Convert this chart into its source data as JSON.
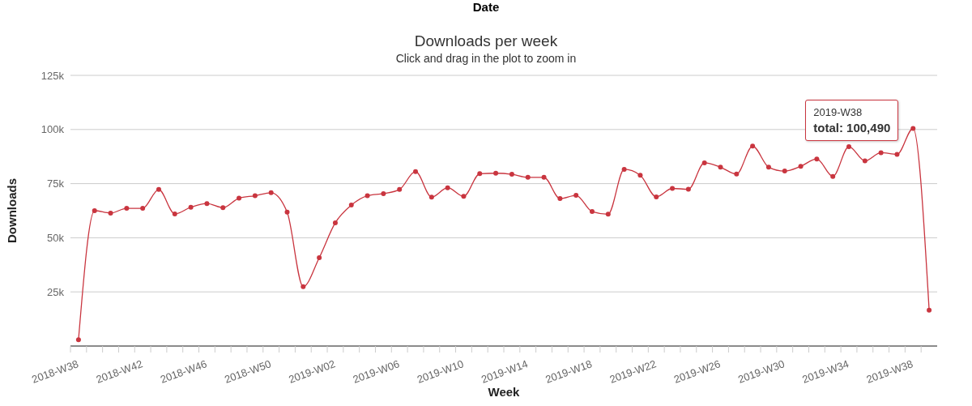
{
  "chart_data": {
    "type": "line",
    "title": "Downloads per week",
    "subtitle": "Click and drag in the plot to zoom in",
    "xlabel": "Week",
    "ylabel": "Downloads",
    "annotations": [
      "Date",
      {
        "text": "2019-W38\ntotal: 100,490",
        "x": "2019-W38",
        "y": 100490
      }
    ],
    "categories": [
      "2018-W38",
      null,
      null,
      null,
      "2018-W42",
      null,
      null,
      null,
      "2018-W46",
      null,
      null,
      null,
      "2018-W50",
      null,
      null,
      null,
      "2019-W02",
      null,
      null,
      null,
      "2019-W06",
      null,
      null,
      null,
      "2019-W10",
      null,
      null,
      null,
      "2019-W14",
      null,
      null,
      null,
      "2019-W18",
      null,
      null,
      null,
      "2019-W22",
      null,
      null,
      null,
      "2019-W26",
      null,
      null,
      null,
      "2019-W30",
      null,
      null,
      null,
      "2019-W34",
      null,
      null,
      null,
      "2019-W38",
      null
    ],
    "series": [
      {
        "color": "#c9353f",
        "values": [
          2900,
          62500,
          61400,
          63600,
          63600,
          72300,
          61000,
          64100,
          65800,
          63900,
          68300,
          69400,
          70800,
          61800,
          27400,
          40800,
          56900,
          65100,
          69400,
          70400,
          72300,
          80600,
          68800,
          73100,
          69100,
          79600,
          79800,
          79300,
          77900,
          77900,
          68100,
          69600,
          62100,
          60900,
          81600,
          78900,
          68900,
          72800,
          72400,
          84600,
          82600,
          79400,
          92300,
          82600,
          80800,
          83000,
          86400,
          78300,
          92100,
          85500,
          89300,
          88500,
          100490,
          16600
        ]
      }
    ],
    "ylim": [
      0,
      125000
    ],
    "yticks": [
      {
        "value": 0,
        "label": null
      },
      {
        "value": 25000,
        "label": "25k"
      },
      {
        "value": 50000,
        "label": "50k"
      },
      {
        "value": 75000,
        "label": "75k"
      },
      {
        "value": 100000,
        "label": "100k"
      },
      {
        "value": 125000,
        "label": "125k"
      }
    ],
    "grid": "y",
    "legend": false,
    "marker": "circle",
    "line_style": "solid"
  }
}
